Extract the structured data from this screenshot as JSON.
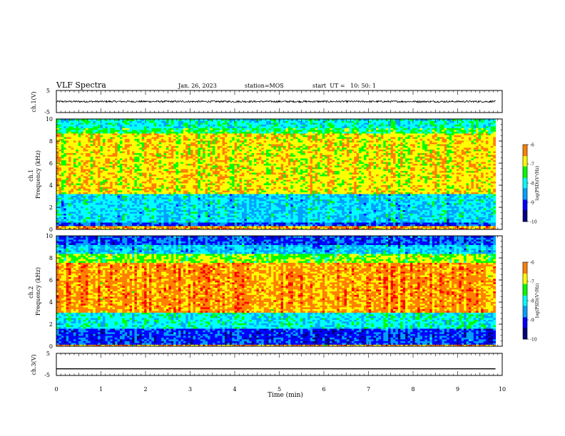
{
  "header": {
    "title": "VLF Spectra",
    "date": "Jan. 26, 2023",
    "station": "station=MOS",
    "start_time": "start  UT =   10: 50: 1"
  },
  "chart_data": [
    {
      "type": "line",
      "panel": "ch1-waveform",
      "ylabel": "ch.1(V)",
      "ylim": [
        -5,
        5
      ],
      "yticks": [
        "5",
        "-5"
      ],
      "xlim": [
        0,
        10
      ],
      "series": [
        {
          "baseline_v": 0.0,
          "noise_amplitude_v": 0.4,
          "t_end_min": 9.85
        }
      ]
    },
    {
      "type": "heatmap",
      "panel": "ch1-spectrogram",
      "ylabel": "ch.1\nFrequency (kHz)",
      "ylim": [
        0,
        10
      ],
      "yticks": [
        "0",
        "2",
        "4",
        "6",
        "8",
        "10"
      ],
      "xlim": [
        0,
        10
      ],
      "t_end_min": 9.85,
      "bands_khz": [
        {
          "from": 0.0,
          "to": 0.25,
          "level": -6.5
        },
        {
          "from": 0.25,
          "to": 0.7,
          "level": -9.0
        },
        {
          "from": 0.7,
          "to": 3.2,
          "level": -8.2
        },
        {
          "from": 3.2,
          "to": 8.7,
          "level": -6.8
        },
        {
          "from": 8.7,
          "to": 9.2,
          "level": -7.6
        },
        {
          "from": 9.2,
          "to": 10.0,
          "level": -8.0
        }
      ],
      "colorbar": {
        "label": "log(PSD)(V²/Hz)",
        "ticks": [
          "-6",
          "-7",
          "-8",
          "-9",
          "-10"
        ],
        "range": [
          -10,
          -6
        ]
      }
    },
    {
      "type": "heatmap",
      "panel": "ch2-spectrogram",
      "ylabel": "ch.2\nFrequency (kHz)",
      "ylim": [
        0,
        10
      ],
      "yticks": [
        "0",
        "2",
        "4",
        "6",
        "8",
        "10"
      ],
      "xlim": [
        0,
        10
      ],
      "t_end_min": 9.85,
      "bands_khz": [
        {
          "from": 0.0,
          "to": 0.2,
          "level": -6.5
        },
        {
          "from": 0.2,
          "to": 1.6,
          "level": -9.0
        },
        {
          "from": 1.6,
          "to": 3.0,
          "level": -8.0
        },
        {
          "from": 3.0,
          "to": 7.6,
          "level": -6.4
        },
        {
          "from": 7.6,
          "to": 8.4,
          "level": -7.2
        },
        {
          "from": 8.4,
          "to": 9.2,
          "level": -8.3
        },
        {
          "from": 9.2,
          "to": 10.0,
          "level": -8.9
        }
      ],
      "colorbar": {
        "label": "log(PSD)(V²/Hz)",
        "ticks": [
          "-6",
          "-7",
          "-8",
          "-9",
          "-10"
        ],
        "range": [
          -10,
          -6
        ]
      }
    },
    {
      "type": "line",
      "panel": "ch3-waveform",
      "ylabel": "ch.3(V)",
      "ylim": [
        -5,
        5
      ],
      "yticks": [
        "5",
        "-5"
      ],
      "xlabel": "Time (min)",
      "xlim": [
        0,
        10
      ],
      "xticks": [
        "0",
        "1",
        "2",
        "3",
        "4",
        "5",
        "6",
        "7",
        "8",
        "9",
        "10"
      ],
      "series": [
        {
          "baseline_v": -2.0,
          "noise_amplitude_v": 0.0,
          "t_end_min": 9.85
        }
      ]
    }
  ],
  "colormap": [
    "#000080",
    "#0000ff",
    "#00a0ff",
    "#00ffff",
    "#00ff00",
    "#ffff00",
    "#ff8000",
    "#ff0000",
    "#ffffff"
  ]
}
